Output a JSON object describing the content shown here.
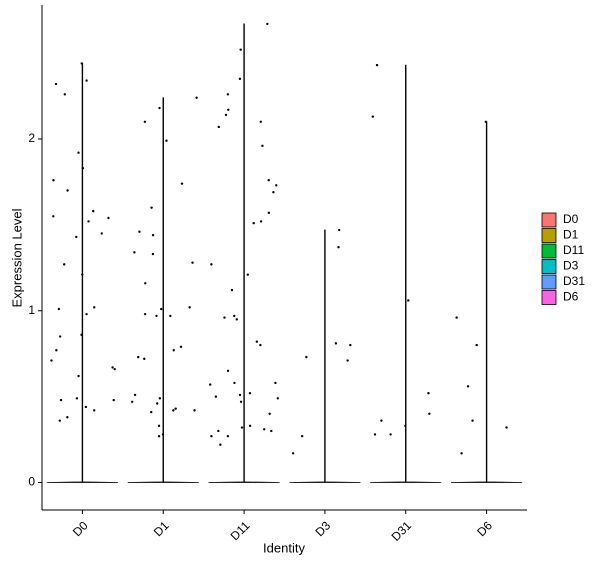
{
  "chart_data": {
    "type": "violin",
    "x_label": "Identity",
    "y_label": "Expression Level",
    "ylim": [
      -0.16,
      2.78
    ],
    "yticks": [
      0,
      1,
      2
    ],
    "legend": "right",
    "series": [
      {
        "name": "D0",
        "color": "#F8766D",
        "values": [
          2.44,
          2.34,
          2.32,
          2.26,
          1.92,
          1.83,
          1.76,
          1.54,
          1.52,
          1.43,
          1.7,
          1.45,
          1.58,
          1.55,
          1.21,
          1.27,
          1.02,
          1.01,
          0.98,
          0.86,
          0.85,
          0.71,
          0.67,
          0.66,
          0.77,
          0.62,
          0.48,
          0.48,
          0.49,
          0.44,
          0.42,
          0.38,
          0.36
        ]
      },
      {
        "name": "D1",
        "color": "#B79F00",
        "values": [
          2.24,
          2.18,
          2.1,
          1.99,
          1.6,
          1.46,
          1.74,
          1.44,
          1.33,
          1.34,
          1.28,
          1.16,
          1.02,
          1.01,
          0.98,
          0.97,
          0.97,
          0.79,
          0.77,
          0.73,
          0.72,
          0.49,
          0.51,
          0.47,
          0.46,
          0.43,
          0.42,
          0.42,
          0.41,
          0.33,
          0.28,
          0.27
        ]
      },
      {
        "name": "D11",
        "color": "#00BA38",
        "values": [
          2.67,
          2.52,
          2.35,
          2.26,
          2.14,
          2.1,
          2.07,
          2.17,
          1.96,
          1.76,
          1.73,
          1.69,
          1.57,
          1.52,
          1.51,
          1.21,
          1.27,
          1.12,
          0.97,
          0.96,
          0.95,
          0.82,
          0.8,
          0.65,
          0.58,
          0.57,
          0.58,
          0.52,
          0.51,
          0.5,
          0.49,
          0.47,
          0.4,
          0.33,
          0.32,
          0.3,
          0.31,
          0.3,
          0.27,
          0.27,
          0.22
        ]
      },
      {
        "name": "D3",
        "color": "#00BFC4",
        "values": [
          1.47,
          1.37,
          0.81,
          0.8,
          0.73,
          0.71,
          0.27,
          0.17
        ]
      },
      {
        "name": "D31",
        "color": "#619CFF",
        "values": [
          2.43,
          2.13,
          1.06,
          0.52,
          0.4,
          0.36,
          0.33,
          0.28,
          0.28
        ]
      },
      {
        "name": "D6",
        "color": "#F564E3",
        "values": [
          2.1,
          0.96,
          0.8,
          0.56,
          0.36,
          0.32,
          0.17
        ]
      }
    ]
  }
}
